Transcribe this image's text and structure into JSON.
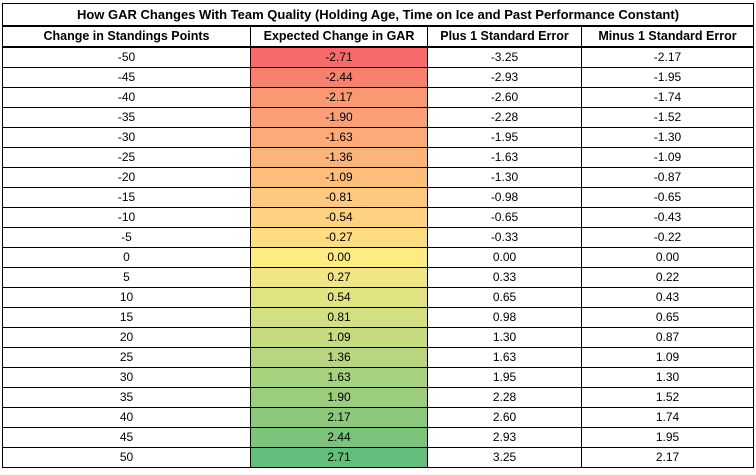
{
  "table": {
    "title": "How GAR Changes With Team Quality (Holding Age, Time on Ice and Past Performance Constant)",
    "headers": [
      "Change in Standings Points",
      "Expected Change in GAR",
      "Plus 1 Standard Error",
      "Minus 1 Standard Error"
    ],
    "rows": [
      [
        "-50",
        "-2.71",
        "-3.25",
        "-2.17"
      ],
      [
        "-45",
        "-2.44",
        "-2.93",
        "-1.95"
      ],
      [
        "-40",
        "-2.17",
        "-2.60",
        "-1.74"
      ],
      [
        "-35",
        "-1.90",
        "-2.28",
        "-1.52"
      ],
      [
        "-30",
        "-1.63",
        "-1.95",
        "-1.30"
      ],
      [
        "-25",
        "-1.36",
        "-1.63",
        "-1.09"
      ],
      [
        "-20",
        "-1.09",
        "-1.30",
        "-0.87"
      ],
      [
        "-15",
        "-0.81",
        "-0.98",
        "-0.65"
      ],
      [
        "-10",
        "-0.54",
        "-0.65",
        "-0.43"
      ],
      [
        "-5",
        "-0.27",
        "-0.33",
        "-0.22"
      ],
      [
        "0",
        "0.00",
        "0.00",
        "0.00"
      ],
      [
        "5",
        "0.27",
        "0.33",
        "0.22"
      ],
      [
        "10",
        "0.54",
        "0.65",
        "0.43"
      ],
      [
        "15",
        "0.81",
        "0.98",
        "0.65"
      ],
      [
        "20",
        "1.09",
        "1.30",
        "0.87"
      ],
      [
        "25",
        "1.36",
        "1.63",
        "1.09"
      ],
      [
        "30",
        "1.63",
        "1.95",
        "1.30"
      ],
      [
        "35",
        "1.90",
        "2.28",
        "1.52"
      ],
      [
        "40",
        "2.17",
        "2.60",
        "1.74"
      ],
      [
        "45",
        "2.44",
        "2.93",
        "1.95"
      ],
      [
        "50",
        "2.71",
        "3.25",
        "2.17"
      ]
    ],
    "heat_colors": [
      "#f8696b",
      "#f9806e",
      "#fa9872",
      "#fba076",
      "#fcaa78",
      "#fcb47a",
      "#fdbe7c",
      "#fec880",
      "#fed282",
      "#fedd82",
      "#ffeb84",
      "#f0e784",
      "#e2e383",
      "#d4df82",
      "#c6db80",
      "#b8d67f",
      "#a9d27f",
      "#9bcd7d",
      "#8cc97d",
      "#7dc47b",
      "#63be7b"
    ]
  }
}
